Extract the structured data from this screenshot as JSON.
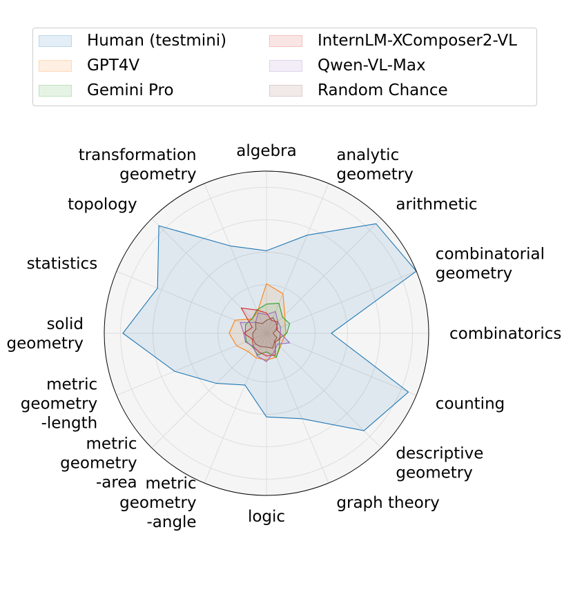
{
  "chart_data": {
    "type": "radar",
    "title": "",
    "categories": [
      "algebra",
      "analytic\ngeometry",
      "arithmetic",
      "combinatorial\ngeometry",
      "combinatorics",
      "counting",
      "descriptive\ngeometry",
      "graph theory",
      "logic",
      "metric\ngeometry\n-angle",
      "metric\ngeometry\n-area",
      "metric\ngeometry\n-length",
      "solid\ngeometry",
      "statistics",
      "topology",
      "transformation\ngeometry"
    ],
    "radial_ticks": [
      "30",
      "50",
      "70",
      "90"
    ],
    "radial_tick_values": [
      30,
      50,
      70,
      90
    ],
    "rlim": [
      0,
      100
    ],
    "grid": true,
    "legend_position": "top",
    "series": [
      {
        "name": "Human (testmini)",
        "color": "#1f77b4",
        "values": [
          50.9,
          65.5,
          95.5,
          100.0,
          40.0,
          94.7,
          85.0,
          57.0,
          51.6,
          34.6,
          43.7,
          61.3,
          88.5,
          72.7,
          93.8,
          58.3
        ]
      },
      {
        "name": "GPT4V",
        "color": "#ff7f0e",
        "values": [
          30.5,
          26.5,
          16.0,
          12.5,
          12.0,
          11.0,
          12.0,
          16.0,
          16.5,
          16.5,
          16.0,
          20.0,
          23.0,
          21.0,
          12.5,
          14.5
        ]
      },
      {
        "name": "Gemini Pro",
        "color": "#2ca02c",
        "values": [
          18.0,
          20.0,
          14.0,
          15.5,
          12.5,
          8.5,
          11.5,
          16.0,
          11.5,
          14.5,
          12.0,
          13.5,
          13.0,
          14.0,
          12.5,
          15.5
        ]
      },
      {
        "name": "InternLM-XComposer2-VL",
        "color": "#d62728",
        "values": [
          12.5,
          8.5,
          10.0,
          6.5,
          8.5,
          9.0,
          7.5,
          14.5,
          14.0,
          12.5,
          11.5,
          9.5,
          14.0,
          9.5,
          22.0,
          15.5
        ]
      },
      {
        "name": "Qwen-VL-Max",
        "color": "#9467bd",
        "values": [
          11.5,
          14.5,
          10.0,
          9.5,
          8.5,
          15.5,
          9.5,
          12.5,
          17.5,
          15.0,
          11.5,
          14.0,
          14.0,
          17.5,
          9.5,
          13.5
        ]
      },
      {
        "name": "Random Chance",
        "color": "#8c564b",
        "values": [
          8.0,
          10.5,
          8.5,
          7.5,
          4.0,
          7.0,
          7.0,
          10.0,
          8.5,
          9.0,
          9.5,
          9.0,
          8.5,
          7.0,
          9.5,
          6.5
        ]
      }
    ]
  }
}
